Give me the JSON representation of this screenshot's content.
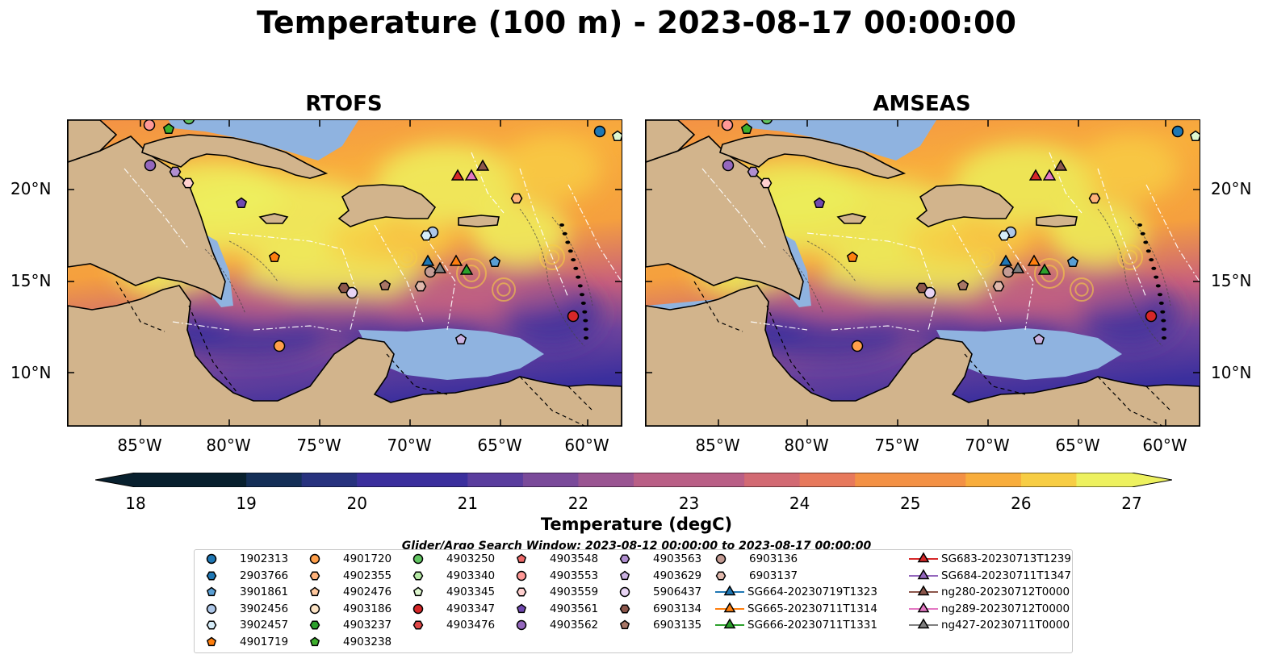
{
  "title": "Temperature (100 m) - 2023-08-17 00:00:00",
  "panels": [
    {
      "title": "RTOFS",
      "variant": "rtofs"
    },
    {
      "title": "AMSEAS",
      "variant": "amseas"
    }
  ],
  "colors": {
    "land": "#d2b48c",
    "ocean_shallow": "#8fb3e0",
    "colormap": [
      "#08202e",
      "#142f57",
      "#27327e",
      "#3b2f9d",
      "#5a3d9e",
      "#7a4a9a",
      "#9a5592",
      "#b95f86",
      "#d26a73",
      "#e7795c",
      "#f39145",
      "#f8ad3c",
      "#f7cd44",
      "#edf15f"
    ]
  },
  "axes": {
    "lon_ticks": [
      "85°W",
      "80°W",
      "75°W",
      "70°W",
      "65°W",
      "60°W"
    ],
    "lat_ticks": [
      "20°N",
      "15°N",
      "10°N"
    ]
  },
  "colorbar": {
    "label": "Temperature (degC)",
    "min": 18,
    "max": 27,
    "extend": "both",
    "ticks": [
      "18",
      "19",
      "20",
      "21",
      "22",
      "23",
      "24",
      "25",
      "26",
      "27"
    ]
  },
  "search_window": "Glider/Argo Search Window: 2023-08-12 00:00:00 to 2023-08-17 00:00:00",
  "legend": {
    "columns": [
      [
        {
          "label": "1902313",
          "marker": "circle",
          "color": "#1f77b4"
        },
        {
          "label": "2903766",
          "marker": "hexagon",
          "color": "#1f77b4"
        },
        {
          "label": "3901861",
          "marker": "pentagon",
          "color": "#5a9fd4"
        },
        {
          "label": "3902456",
          "marker": "circle",
          "color": "#aec7e8"
        },
        {
          "label": "3902457",
          "marker": "hexagon",
          "color": "#d5ecf8"
        },
        {
          "label": "4901719",
          "marker": "pentagon",
          "color": "#ff7f0e"
        }
      ],
      [
        {
          "label": "4901720",
          "marker": "circle",
          "color": "#ff9f4a"
        },
        {
          "label": "4902355",
          "marker": "hexagon",
          "color": "#ffb27a"
        },
        {
          "label": "4902476",
          "marker": "pentagon",
          "color": "#ffc89e"
        },
        {
          "label": "4903186",
          "marker": "circle",
          "color": "#fde4c6"
        },
        {
          "label": "4903237",
          "marker": "hexagon",
          "color": "#2ca02c"
        },
        {
          "label": "4903238",
          "marker": "pentagon",
          "color": "#3dae2c"
        }
      ],
      [
        {
          "label": "4903250",
          "marker": "circle",
          "color": "#62c662"
        },
        {
          "label": "4903340",
          "marker": "hexagon",
          "color": "#b5e8a5"
        },
        {
          "label": "4903345",
          "marker": "pentagon",
          "color": "#dff8cf"
        },
        {
          "label": "4903347",
          "marker": "circle",
          "color": "#d62728"
        },
        {
          "label": "4903476",
          "marker": "hexagon",
          "color": "#e04848"
        }
      ],
      [
        {
          "label": "4903548",
          "marker": "pentagon",
          "color": "#ef6a6a"
        },
        {
          "label": "4903553",
          "marker": "circle",
          "color": "#ff9896"
        },
        {
          "label": "4903559",
          "marker": "hexagon",
          "color": "#ffd0cf"
        },
        {
          "label": "4903561",
          "marker": "pentagon",
          "color": "#7048b0"
        },
        {
          "label": "4903562",
          "marker": "circle",
          "color": "#9467bd"
        }
      ],
      [
        {
          "label": "4903563",
          "marker": "hexagon",
          "color": "#b08ed0"
        },
        {
          "label": "4903629",
          "marker": "pentagon",
          "color": "#cbb2e2"
        },
        {
          "label": "5906437",
          "marker": "circle",
          "color": "#e8d4f4"
        },
        {
          "label": "6903134",
          "marker": "hexagon",
          "color": "#8c564b"
        },
        {
          "label": "6903135",
          "marker": "pentagon",
          "color": "#a87666"
        }
      ],
      [
        {
          "label": "6903136",
          "marker": "circle",
          "color": "#c49c94"
        },
        {
          "label": "6903137",
          "marker": "hexagon",
          "color": "#e0b8ac"
        },
        {
          "label": "SG664-20230719T1323",
          "marker": "triangle",
          "color": "#1f77b4",
          "line": true
        },
        {
          "label": "SG665-20230711T1314",
          "marker": "triangle",
          "color": "#ff7f0e",
          "line": true
        },
        {
          "label": "SG666-20230711T1331",
          "marker": "triangle",
          "color": "#2ca02c",
          "line": true
        }
      ],
      [
        {
          "label": "SG683-20230713T1239",
          "marker": "triangle",
          "color": "#d62728",
          "line": true
        },
        {
          "label": "SG684-20230711T1347",
          "marker": "triangle",
          "color": "#9467bd",
          "line": true
        },
        {
          "label": "ng280-20230712T0000",
          "marker": "triangle",
          "color": "#8c564b",
          "line": true
        },
        {
          "label": "ng289-20230712T0000",
          "marker": "triangle",
          "color": "#e377c2",
          "line": true
        },
        {
          "label": "ng427-20230711T0000",
          "marker": "triangle",
          "color": "#7f7f7f",
          "line": true
        }
      ]
    ]
  }
}
